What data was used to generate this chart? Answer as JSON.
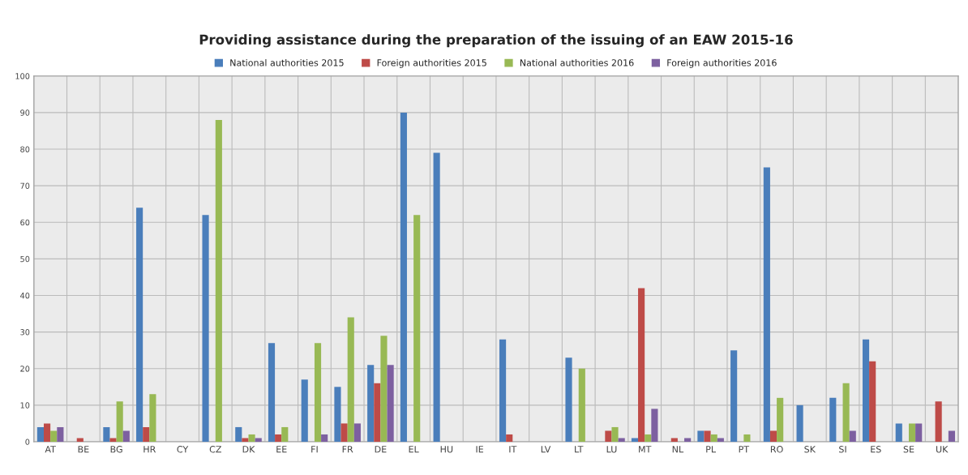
{
  "chart_data": {
    "type": "bar",
    "title": "Providing assistance during the preparation of the issuing of an EAW 2015-16",
    "categories": [
      "AT",
      "BE",
      "BG",
      "HR",
      "CY",
      "CZ",
      "DK",
      "EE",
      "FI",
      "FR",
      "DE",
      "EL",
      "HU",
      "IE",
      "IT",
      "LV",
      "LT",
      "LU",
      "MT",
      "NL",
      "PL",
      "PT",
      "RO",
      "SK",
      "SI",
      "ES",
      "SE",
      "UK"
    ],
    "series": [
      {
        "name": "National authorities 2015",
        "color": "#4a7ebb",
        "values": [
          4,
          null,
          4,
          64,
          null,
          62,
          4,
          27,
          17,
          15,
          21,
          90,
          79,
          null,
          28,
          null,
          23,
          null,
          1,
          null,
          3,
          25,
          75,
          10,
          12,
          28,
          5,
          null
        ]
      },
      {
        "name": "Foreign authorities 2015",
        "color": "#be4b48",
        "values": [
          5,
          1,
          1,
          4,
          null,
          null,
          1,
          2,
          null,
          5,
          16,
          null,
          null,
          null,
          2,
          null,
          null,
          3,
          42,
          1,
          3,
          null,
          3,
          null,
          null,
          22,
          null,
          11
        ]
      },
      {
        "name": "National authorities 2016",
        "color": "#98b954",
        "values": [
          3,
          null,
          11,
          13,
          null,
          88,
          2,
          4,
          27,
          34,
          29,
          62,
          null,
          null,
          null,
          null,
          20,
          4,
          2,
          null,
          2,
          2,
          12,
          null,
          16,
          null,
          5,
          null
        ]
      },
      {
        "name": "Foreign authorities 2016",
        "color": "#7d60a0",
        "values": [
          4,
          null,
          3,
          null,
          null,
          null,
          1,
          null,
          2,
          5,
          21,
          null,
          null,
          null,
          null,
          null,
          null,
          1,
          9,
          1,
          1,
          null,
          null,
          null,
          3,
          null,
          5,
          3
        ]
      }
    ],
    "ylim": [
      0,
      100
    ],
    "yticks": [
      0,
      10,
      20,
      30,
      40,
      50,
      60,
      70,
      80,
      90,
      100
    ],
    "grid": true,
    "legend": "top"
  }
}
